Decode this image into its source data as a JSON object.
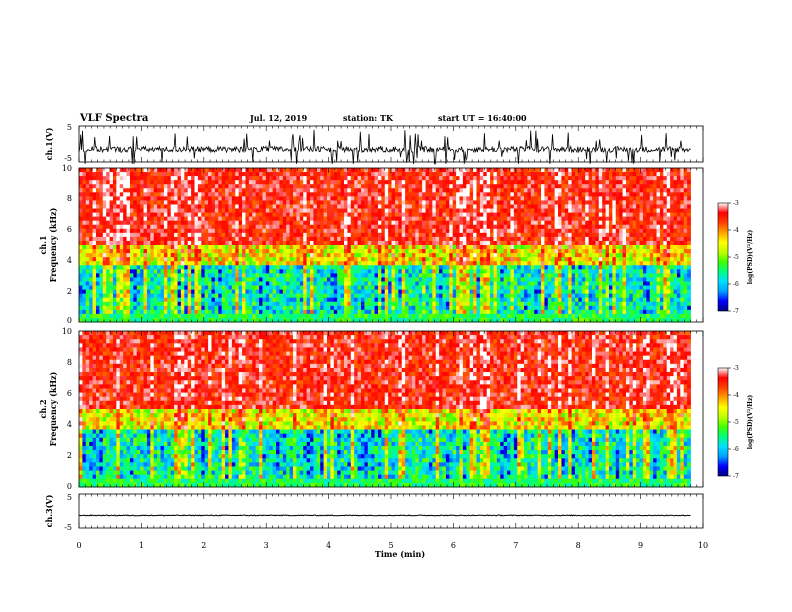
{
  "header": {
    "title": "VLF Spectra",
    "date": "Jul. 12, 2019",
    "station": "station: TK",
    "start_time": "start UT = 16:40:00"
  },
  "colorbar": {
    "label": "log(PSD)(V²/Hz)",
    "ticks": [
      "-3",
      "-4",
      "-5",
      "-6",
      "-7"
    ],
    "colormap": [
      "#000080",
      "#0000ff",
      "#00a0ff",
      "#00e0ff",
      "#00ff80",
      "#40ff00",
      "#c0ff00",
      "#ffff00",
      "#ffa000",
      "#ff4000",
      "#ff0000",
      "#ffffff"
    ]
  },
  "chart_data": [
    {
      "type": "line",
      "name": "ch1-waveform",
      "ylabel": "ch.1(V)",
      "ylim": [
        -5,
        5
      ],
      "yticks": [
        "5",
        "-5"
      ],
      "xlim": [
        0,
        10
      ],
      "baseline": -1.5,
      "grid": false
    },
    {
      "type": "heatmap",
      "name": "ch1-spectrogram",
      "ylabel_line1": "ch.1",
      "ylabel_line2": "Frequency (kHz)",
      "ylim": [
        0,
        10
      ],
      "yticks": [
        "0",
        "2",
        "4",
        "6",
        "8",
        "10"
      ],
      "xlim": [
        0,
        9.8
      ],
      "zlim": [
        -7,
        -3
      ],
      "description_levels": {
        "low_freq_khz": [
          0,
          5
        ],
        "high_freq_khz": [
          5,
          10
        ]
      }
    },
    {
      "type": "heatmap",
      "name": "ch2-spectrogram",
      "ylabel_line1": "ch.2",
      "ylabel_line2": "Frequency (kHz)",
      "ylim": [
        0,
        10
      ],
      "yticks": [
        "0",
        "2",
        "4",
        "6",
        "8",
        "10"
      ],
      "xlim": [
        0,
        9.8
      ],
      "zlim": [
        -7,
        -3
      ]
    },
    {
      "type": "line",
      "name": "ch3-waveform",
      "ylabel": "ch.3(V)",
      "ylim": [
        -5,
        5
      ],
      "yticks": [
        "5",
        "-5"
      ],
      "xlim": [
        0,
        10
      ],
      "baseline": -1.3,
      "grid": false
    }
  ],
  "xaxis": {
    "label": "Time (min)",
    "ticks": [
      "0",
      "1",
      "2",
      "3",
      "4",
      "5",
      "6",
      "7",
      "8",
      "9",
      "10"
    ],
    "range": [
      0,
      10
    ]
  }
}
